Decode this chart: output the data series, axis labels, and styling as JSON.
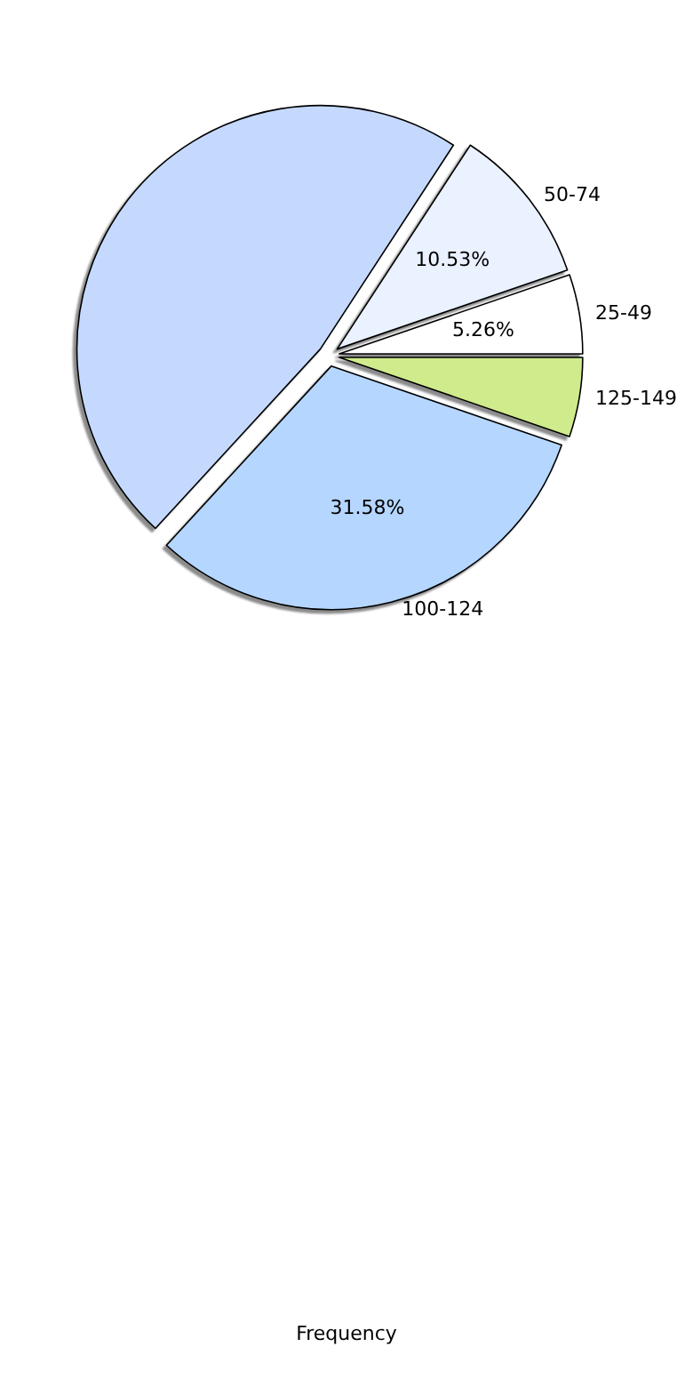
{
  "chart_data": {
    "type": "pie",
    "xlabel": "Frequency",
    "categories": [
      "25-49",
      "50-74",
      null,
      "100-124",
      "125-149"
    ],
    "values": [
      5.26,
      10.53,
      47.37,
      31.58,
      5.26
    ],
    "value_labels": [
      "5.26%",
      "10.53%",
      null,
      "31.58%",
      null
    ],
    "colors": [
      "#ffffff",
      "#eaf1ff",
      "#c5d9ff",
      "#b5d6ff",
      "#cfeb8b"
    ],
    "legend": false
  }
}
